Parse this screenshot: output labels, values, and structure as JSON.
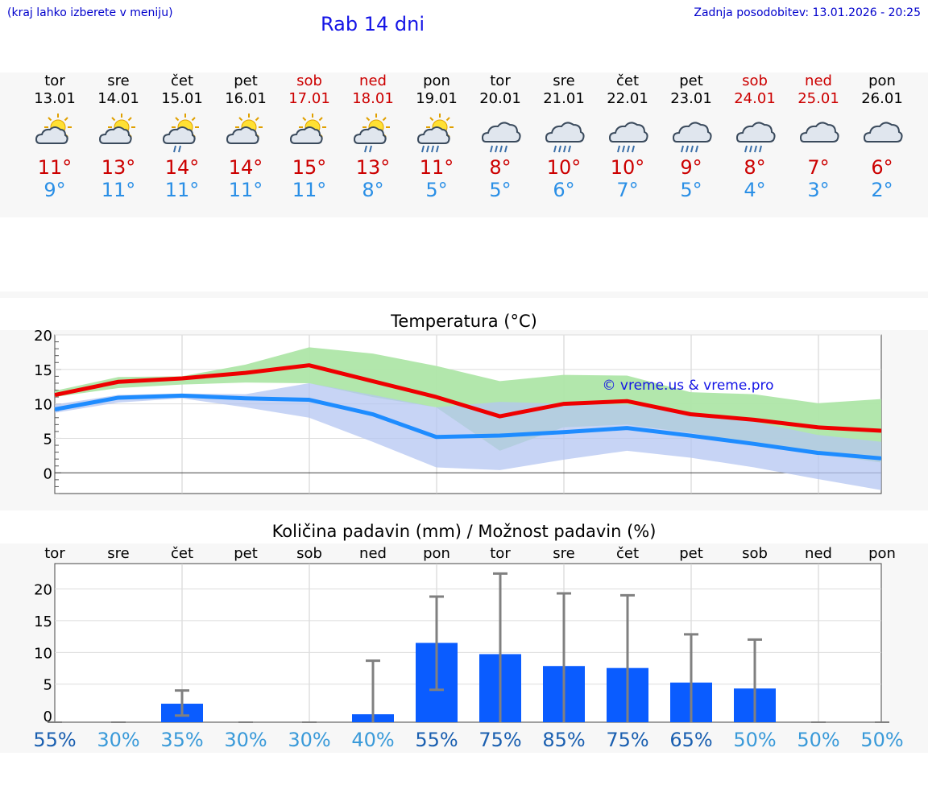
{
  "header": {
    "hint": "(kraj lahko izberete v meniju)",
    "title": "Rab 14 dni",
    "updated": "Zadnja posodobitev: 13.01.2026 - 20:25"
  },
  "days": [
    {
      "name": "tor",
      "date": "13.01",
      "weekend": false,
      "icon": "sun-cloud-icon",
      "tmax": "11°",
      "tmin": "9°"
    },
    {
      "name": "sre",
      "date": "14.01",
      "weekend": false,
      "icon": "sun-cloud-icon",
      "tmax": "13°",
      "tmin": "11°"
    },
    {
      "name": "čet",
      "date": "15.01",
      "weekend": false,
      "icon": "sun-cloud-rain-icon",
      "tmax": "14°",
      "tmin": "11°"
    },
    {
      "name": "pet",
      "date": "16.01",
      "weekend": false,
      "icon": "sun-cloud-icon",
      "tmax": "14°",
      "tmin": "11°"
    },
    {
      "name": "sob",
      "date": "17.01",
      "weekend": true,
      "icon": "sun-cloud-icon",
      "tmax": "15°",
      "tmin": "11°"
    },
    {
      "name": "ned",
      "date": "18.01",
      "weekend": true,
      "icon": "sun-cloud-rain-icon",
      "tmax": "13°",
      "tmin": "8°"
    },
    {
      "name": "pon",
      "date": "19.01",
      "weekend": false,
      "icon": "sun-cloud-heavy-rain-icon",
      "tmax": "11°",
      "tmin": "5°"
    },
    {
      "name": "tor",
      "date": "20.01",
      "weekend": false,
      "icon": "cloud-heavy-rain-icon",
      "tmax": "8°",
      "tmin": "5°"
    },
    {
      "name": "sre",
      "date": "21.01",
      "weekend": false,
      "icon": "cloud-heavy-rain-icon",
      "tmax": "10°",
      "tmin": "6°"
    },
    {
      "name": "čet",
      "date": "22.01",
      "weekend": false,
      "icon": "cloud-heavy-rain-icon",
      "tmax": "10°",
      "tmin": "7°"
    },
    {
      "name": "pet",
      "date": "23.01",
      "weekend": false,
      "icon": "cloud-heavy-rain-icon",
      "tmax": "9°",
      "tmin": "5°"
    },
    {
      "name": "sob",
      "date": "24.01",
      "weekend": true,
      "icon": "cloud-heavy-rain-icon",
      "tmax": "8°",
      "tmin": "4°"
    },
    {
      "name": "ned",
      "date": "25.01",
      "weekend": true,
      "icon": "cloud-icon",
      "tmax": "7°",
      "tmin": "3°"
    },
    {
      "name": "pon",
      "date": "26.01",
      "weekend": false,
      "icon": "cloud-icon",
      "tmax": "6°",
      "tmin": "2°"
    }
  ],
  "colors": {
    "tmax": "#cc0000",
    "tmin": "#2a8fe6",
    "tmax_line": "#ee0000",
    "tmin_line": "#1e8cff",
    "max_band": "#aee6a8",
    "min_band": "#b4c6f2",
    "overlap_band": "#80c4a4",
    "bar": "#0a5cff",
    "errorbar": "#808080",
    "prob_high": "#1a5fb0",
    "prob_low": "#3a9ad9"
  },
  "chart_data": [
    {
      "type": "line",
      "title": "Temperatura (°C)",
      "watermark": "© vreme.us & vreme.pro",
      "ylim": [
        -3,
        20
      ],
      "yticks": [
        0,
        5,
        10,
        15,
        20
      ],
      "series": [
        {
          "name": "max",
          "values": [
            11.3,
            13.2,
            13.7,
            14.5,
            15.6,
            13.3,
            11.0,
            8.2,
            10.0,
            10.4,
            8.5,
            7.7,
            6.6,
            6.1
          ]
        },
        {
          "name": "min",
          "values": [
            9.2,
            10.9,
            11.2,
            10.8,
            10.6,
            8.5,
            5.2,
            5.4,
            5.9,
            6.5,
            5.4,
            4.2,
            2.9,
            2.1
          ]
        },
        {
          "name": "max_range",
          "low": [
            11.0,
            12.3,
            12.8,
            13.1,
            13.0,
            11.0,
            9.5,
            3.2,
            6.6,
            7.0,
            5.8,
            4.3,
            2.8,
            1.5
          ],
          "high": [
            11.9,
            13.9,
            14.0,
            15.7,
            18.2,
            17.3,
            15.5,
            13.3,
            14.2,
            14.1,
            11.7,
            11.4,
            10.1,
            10.7
          ]
        },
        {
          "name": "min_range",
          "low": [
            8.7,
            10.2,
            10.8,
            9.5,
            8.0,
            4.5,
            0.8,
            0.4,
            1.9,
            3.2,
            2.2,
            0.8,
            -0.9,
            -2.5
          ],
          "high": [
            9.9,
            11.3,
            11.5,
            11.4,
            13.0,
            11.3,
            9.5,
            10.3,
            10.0,
            9.9,
            8.8,
            7.4,
            5.5,
            4.5
          ]
        }
      ]
    },
    {
      "type": "bar",
      "title": "Količina padavin (mm) / Možnost padavin (%)",
      "ylim": [
        -1,
        24
      ],
      "yticks": [
        0,
        5,
        10,
        15,
        20
      ],
      "categories": [
        "tor",
        "sre",
        "čet",
        "pet",
        "sob",
        "ned",
        "pon",
        "tor",
        "sre",
        "čet",
        "pet",
        "sob",
        "ned",
        "pon"
      ],
      "values": [
        0,
        0,
        2.8,
        0,
        0,
        1.2,
        12.0,
        10.3,
        8.5,
        8.2,
        6.0,
        5.1,
        0,
        0
      ],
      "error_low": [
        0,
        0,
        1.0,
        0,
        0,
        0,
        4.9,
        0,
        0,
        0,
        0,
        0,
        0,
        0
      ],
      "error_high": [
        0,
        0,
        4.8,
        0,
        0,
        9.3,
        19.0,
        22.5,
        19.5,
        19.2,
        13.3,
        12.5,
        0,
        0
      ],
      "probabilities": [
        "55%",
        "30%",
        "35%",
        "30%",
        "30%",
        "40%",
        "55%",
        "75%",
        "85%",
        "75%",
        "65%",
        "50%",
        "50%",
        "50%"
      ]
    }
  ]
}
